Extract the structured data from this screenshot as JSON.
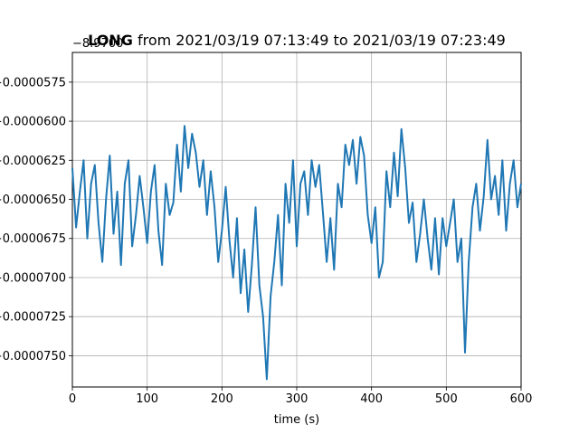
{
  "chart_data": {
    "type": "line",
    "title": "LONG from 2021/03/19 07:13:49 to 2021/03/19 07:23:49",
    "title_bold_part": "LONG",
    "title_rest": " from 2021/03/19 07:13:49 to 2021/03/19 07:23:49",
    "xlabel": "time (s)",
    "ylabel": "",
    "y_offset_label": "−8.9700",
    "xlim": [
      0,
      600
    ],
    "ylim": [
      -7.7e-05,
      -5.56e-05
    ],
    "y_inverted": true,
    "grid": true,
    "x_ticks": [
      0,
      100,
      200,
      300,
      400,
      500,
      600
    ],
    "x_tick_labels": [
      "0",
      "100",
      "200",
      "300",
      "400",
      "500",
      "600"
    ],
    "y_ticks": [
      -5.75e-05,
      -6e-05,
      -6.25e-05,
      -6.5e-05,
      -6.75e-05,
      -7e-05,
      -7.25e-05,
      -7.5e-05
    ],
    "y_tick_labels": [
      "−0.0000575",
      "−0.0000600",
      "−0.0000625",
      "−0.0000650",
      "−0.0000675",
      "−0.0000700",
      "−0.0000725",
      "−0.0000750"
    ],
    "series": [
      {
        "color": "#1f77b4",
        "x": [
          0,
          5,
          10,
          15,
          20,
          25,
          30,
          35,
          40,
          45,
          50,
          55,
          60,
          65,
          70,
          75,
          80,
          85,
          90,
          95,
          100,
          105,
          110,
          115,
          120,
          125,
          130,
          135,
          140,
          145,
          150,
          155,
          160,
          165,
          170,
          175,
          180,
          185,
          190,
          195,
          200,
          205,
          210,
          215,
          220,
          225,
          230,
          235,
          240,
          245,
          250,
          255,
          260,
          265,
          270,
          275,
          280,
          285,
          290,
          295,
          300,
          305,
          310,
          315,
          320,
          325,
          330,
          335,
          340,
          345,
          350,
          355,
          360,
          365,
          370,
          375,
          380,
          385,
          390,
          395,
          400,
          405,
          410,
          415,
          420,
          425,
          430,
          435,
          440,
          445,
          450,
          455,
          460,
          465,
          470,
          475,
          480,
          485,
          490,
          495,
          500,
          505,
          510,
          515,
          520,
          525,
          530,
          535,
          540,
          545,
          550,
          555,
          560,
          565,
          570,
          575,
          580,
          585,
          590,
          595,
          600
        ],
        "y": [
          -6.3e-05,
          -6.68e-05,
          -6.45e-05,
          -6.25e-05,
          -6.75e-05,
          -6.4e-05,
          -6.28e-05,
          -6.65e-05,
          -6.9e-05,
          -6.5e-05,
          -6.22e-05,
          -6.72e-05,
          -6.45e-05,
          -6.92e-05,
          -6.4e-05,
          -6.25e-05,
          -6.8e-05,
          -6.6e-05,
          -6.35e-05,
          -6.55e-05,
          -6.78e-05,
          -6.45e-05,
          -6.28e-05,
          -6.7e-05,
          -6.92e-05,
          -6.4e-05,
          -6.6e-05,
          -6.52e-05,
          -6.15e-05,
          -6.45e-05,
          -6.03e-05,
          -6.3e-05,
          -6.08e-05,
          -6.2e-05,
          -6.42e-05,
          -6.25e-05,
          -6.6e-05,
          -6.32e-05,
          -6.55e-05,
          -6.9e-05,
          -6.7e-05,
          -6.42e-05,
          -6.76e-05,
          -7e-05,
          -6.62e-05,
          -7.1e-05,
          -6.82e-05,
          -7.22e-05,
          -6.92e-05,
          -6.55e-05,
          -7.05e-05,
          -7.25e-05,
          -7.65e-05,
          -7.12e-05,
          -6.9e-05,
          -6.6e-05,
          -7.05e-05,
          -6.4e-05,
          -6.65e-05,
          -6.25e-05,
          -6.8e-05,
          -6.4e-05,
          -6.32e-05,
          -6.6e-05,
          -6.25e-05,
          -6.42e-05,
          -6.28e-05,
          -6.58e-05,
          -6.9e-05,
          -6.62e-05,
          -6.95e-05,
          -6.4e-05,
          -6.55e-05,
          -6.15e-05,
          -6.28e-05,
          -6.12e-05,
          -6.4e-05,
          -6.1e-05,
          -6.22e-05,
          -6.6e-05,
          -6.78e-05,
          -6.55e-05,
          -7e-05,
          -6.9e-05,
          -6.32e-05,
          -6.55e-05,
          -6.2e-05,
          -6.48e-05,
          -6.05e-05,
          -6.3e-05,
          -6.65e-05,
          -6.52e-05,
          -6.9e-05,
          -6.72e-05,
          -6.5e-05,
          -6.75e-05,
          -6.95e-05,
          -6.62e-05,
          -6.98e-05,
          -6.62e-05,
          -6.8e-05,
          -6.65e-05,
          -6.5e-05,
          -6.9e-05,
          -6.75e-05,
          -7.48e-05,
          -6.9e-05,
          -6.55e-05,
          -6.4e-05,
          -6.7e-05,
          -6.48e-05,
          -6.12e-05,
          -6.5e-05,
          -6.35e-05,
          -6.6e-05,
          -6.25e-05,
          -6.7e-05,
          -6.4e-05,
          -6.25e-05,
          -6.55e-05,
          -6.4e-05
        ]
      }
    ]
  }
}
